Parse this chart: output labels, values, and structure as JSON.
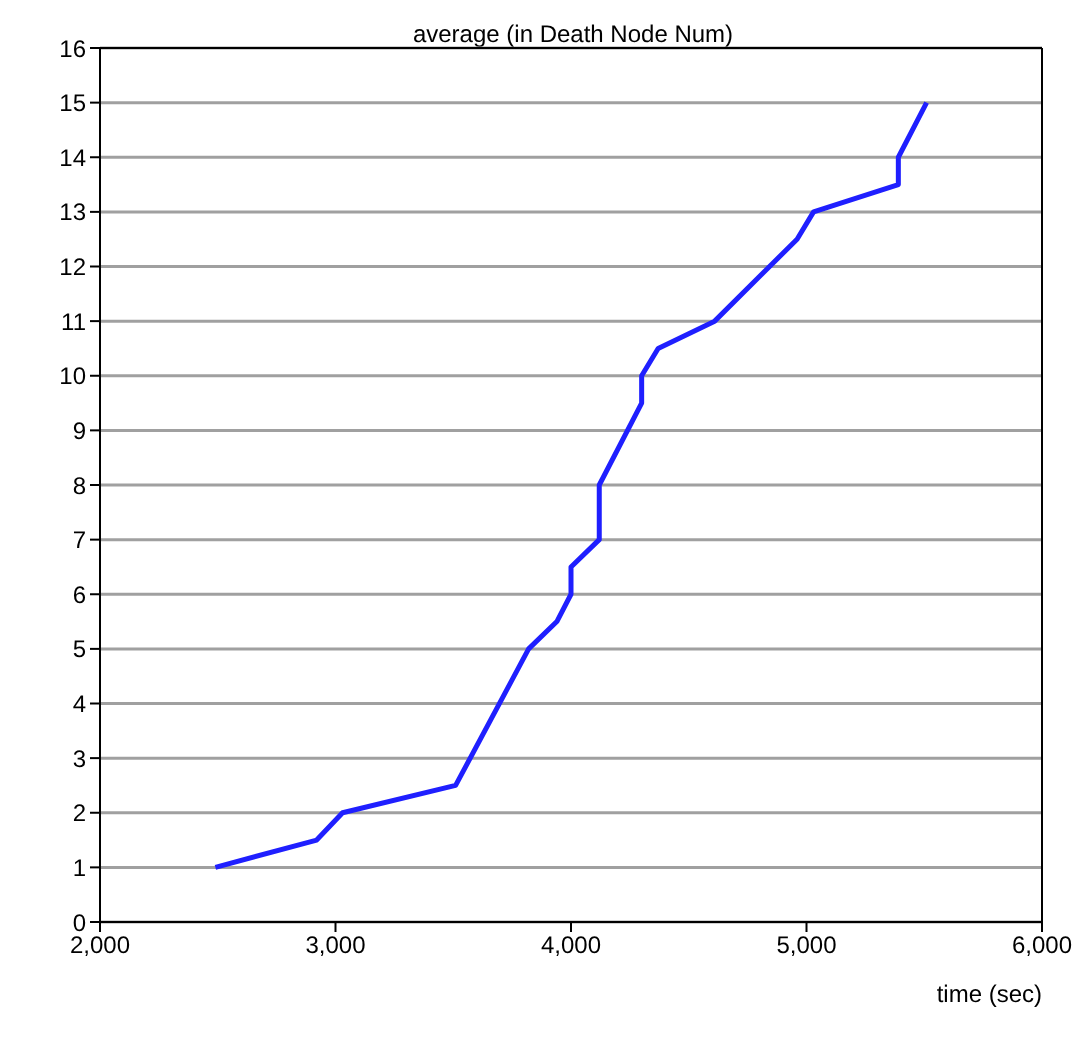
{
  "chart_data": {
    "type": "line",
    "title": "average (in Death Node Num)",
    "xlabel": "time (sec)",
    "x": [
      2490,
      2920,
      3030,
      3510,
      3820,
      3940,
      4000,
      4000,
      4120,
      4120,
      4300,
      4300,
      4370,
      4610,
      4960,
      5030,
      5390,
      5390,
      5510
    ],
    "series": [
      {
        "color": "#1f1fff",
        "values": [
          1,
          1.5,
          2,
          2.5,
          5,
          5.5,
          6,
          6.5,
          7,
          8,
          9.5,
          10,
          10.5,
          11,
          12.5,
          13,
          13.5,
          14,
          15
        ]
      }
    ],
    "xlim": [
      2000,
      6000
    ],
    "xticks": [
      {
        "value": 2000,
        "label": "2,000"
      },
      {
        "value": 3000,
        "label": "3,000"
      },
      {
        "value": 4000,
        "label": "4,000"
      },
      {
        "value": 5000,
        "label": "5,000"
      },
      {
        "value": 6000,
        "label": "6,000"
      }
    ],
    "ylim": [
      0,
      16
    ],
    "yticks": [
      0,
      1,
      2,
      3,
      4,
      5,
      6,
      7,
      8,
      9,
      10,
      11,
      12,
      13,
      14,
      15,
      16
    ],
    "grid": "y",
    "marker": "none",
    "line_style": "solid"
  }
}
